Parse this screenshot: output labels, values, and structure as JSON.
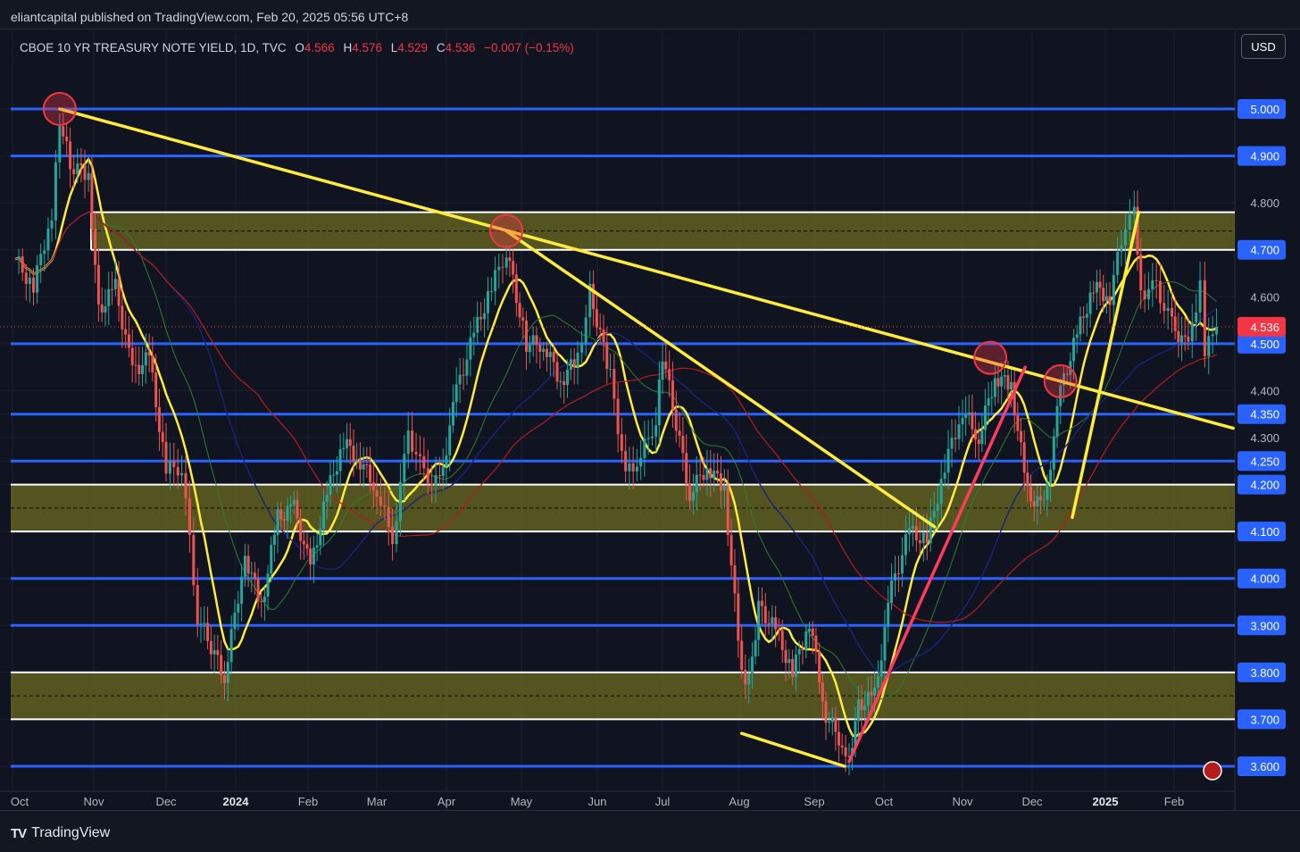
{
  "header": {
    "published_by": "eliantcapital published on TradingView.com, Feb 20, 2025 05:56 UTC+8"
  },
  "legend": {
    "symbol": "CBOE 10 YR TREASURY NOTE YIELD, 1D, TVC",
    "open_label": "O",
    "open": "4.566",
    "high_label": "H",
    "high": "4.576",
    "low_label": "L",
    "low": "4.529",
    "close_label": "C",
    "close": "4.536",
    "change": "−0.007 (−0.15%)"
  },
  "currency_button": "USD",
  "footer": {
    "brand": "TradingView",
    "brand_mark": "TV"
  },
  "colors": {
    "background": "#0f1420",
    "up_candle": "#26a69a",
    "down_candle": "#ef5350",
    "level_line": "#2962ff",
    "trend_line": "#ffeb3b",
    "zone_fill": "#6b6a1f",
    "highlight_circle": "#f23645",
    "last_price": "#f23645"
  },
  "chart_data": {
    "type": "line",
    "title": "CBOE 10 YR TREASURY NOTE YIELD, 1D, TVC",
    "price_axis": {
      "ticks": [
        "5.000",
        "4.900",
        "4.800",
        "4.700",
        "4.600",
        "4.500",
        "4.400",
        "4.350",
        "4.300",
        "4.250",
        "4.200",
        "4.100",
        "4.000",
        "3.900",
        "3.800",
        "3.700",
        "3.600"
      ],
      "highlighted_ticks": [
        "5.000",
        "4.900",
        "4.700",
        "4.500",
        "4.350",
        "4.250",
        "4.200",
        "4.100",
        "4.000",
        "3.900",
        "3.800",
        "3.700",
        "3.600"
      ],
      "ylim": [
        3.6,
        5.1
      ],
      "last_price": "4.536"
    },
    "time_axis": {
      "labels": [
        "Oct",
        "Nov",
        "Dec",
        "2024",
        "Feb",
        "Mar",
        "Apr",
        "May",
        "Jun",
        "Jul",
        "Aug",
        "Sep",
        "Oct",
        "Nov",
        "Dec",
        "2025",
        "Feb"
      ],
      "bold_labels": [
        "2024",
        "2025"
      ]
    },
    "horizontal_levels": [
      {
        "price": 5.0,
        "color": "blue"
      },
      {
        "price": 4.9,
        "color": "blue"
      },
      {
        "price": 4.5,
        "color": "blue"
      },
      {
        "price": 4.35,
        "color": "blue"
      },
      {
        "price": 4.25,
        "color": "blue"
      },
      {
        "price": 4.0,
        "color": "blue"
      },
      {
        "price": 3.9,
        "color": "blue"
      },
      {
        "price": 3.6,
        "color": "blue"
      }
    ],
    "zones": [
      {
        "from": 4.7,
        "to": 4.78
      },
      {
        "from": 4.1,
        "to": 4.2
      },
      {
        "from": 3.7,
        "to": 3.8
      }
    ],
    "series": [
      {
        "kind": "closing_price",
        "points": [
          [
            "2023-10-02",
            4.68
          ],
          [
            "2023-10-09",
            4.62
          ],
          [
            "2023-10-16",
            4.78
          ],
          [
            "2023-10-19",
            4.98
          ],
          [
            "2023-10-23",
            4.88
          ],
          [
            "2023-10-30",
            4.86
          ],
          [
            "2023-11-03",
            4.57
          ],
          [
            "2023-11-10",
            4.62
          ],
          [
            "2023-11-17",
            4.44
          ],
          [
            "2023-11-24",
            4.47
          ],
          [
            "2023-12-01",
            4.23
          ],
          [
            "2023-12-08",
            4.24
          ],
          [
            "2023-12-15",
            3.92
          ],
          [
            "2023-12-27",
            3.79
          ],
          [
            "2024-01-05",
            4.05
          ],
          [
            "2024-01-12",
            3.94
          ],
          [
            "2024-01-19",
            4.13
          ],
          [
            "2024-01-26",
            4.15
          ],
          [
            "2024-02-02",
            4.02
          ],
          [
            "2024-02-09",
            4.18
          ],
          [
            "2024-02-16",
            4.29
          ],
          [
            "2024-02-23",
            4.25
          ],
          [
            "2024-03-01",
            4.19
          ],
          [
            "2024-03-08",
            4.08
          ],
          [
            "2024-03-15",
            4.31
          ],
          [
            "2024-03-22",
            4.22
          ],
          [
            "2024-03-29",
            4.2
          ],
          [
            "2024-04-05",
            4.4
          ],
          [
            "2024-04-12",
            4.52
          ],
          [
            "2024-04-19",
            4.62
          ],
          [
            "2024-04-25",
            4.7
          ],
          [
            "2024-05-03",
            4.5
          ],
          [
            "2024-05-10",
            4.5
          ],
          [
            "2024-05-17",
            4.42
          ],
          [
            "2024-05-24",
            4.47
          ],
          [
            "2024-05-29",
            4.61
          ],
          [
            "2024-06-07",
            4.43
          ],
          [
            "2024-06-14",
            4.22
          ],
          [
            "2024-06-21",
            4.26
          ],
          [
            "2024-06-28",
            4.34
          ],
          [
            "2024-07-01",
            4.48
          ],
          [
            "2024-07-12",
            4.18
          ],
          [
            "2024-07-19",
            4.24
          ],
          [
            "2024-07-26",
            4.19
          ],
          [
            "2024-08-02",
            3.79
          ],
          [
            "2024-08-05",
            3.78
          ],
          [
            "2024-08-09",
            3.94
          ],
          [
            "2024-08-16",
            3.89
          ],
          [
            "2024-08-23",
            3.8
          ],
          [
            "2024-08-30",
            3.91
          ],
          [
            "2024-09-06",
            3.71
          ],
          [
            "2024-09-13",
            3.65
          ],
          [
            "2024-09-16",
            3.62
          ],
          [
            "2024-09-20",
            3.73
          ],
          [
            "2024-09-27",
            3.75
          ],
          [
            "2024-10-04",
            3.98
          ],
          [
            "2024-10-11",
            4.1
          ],
          [
            "2024-10-18",
            4.08
          ],
          [
            "2024-10-25",
            4.24
          ],
          [
            "2024-11-01",
            4.36
          ],
          [
            "2024-11-08",
            4.3
          ],
          [
            "2024-11-15",
            4.43
          ],
          [
            "2024-11-22",
            4.41
          ],
          [
            "2024-11-29",
            4.18
          ],
          [
            "2024-12-06",
            4.15
          ],
          [
            "2024-12-13",
            4.4
          ],
          [
            "2024-12-20",
            4.52
          ],
          [
            "2024-12-27",
            4.62
          ],
          [
            "2025-01-03",
            4.6
          ],
          [
            "2025-01-10",
            4.76
          ],
          [
            "2025-01-14",
            4.8
          ],
          [
            "2025-01-17",
            4.61
          ],
          [
            "2025-01-24",
            4.62
          ],
          [
            "2025-01-31",
            4.54
          ],
          [
            "2025-02-07",
            4.49
          ],
          [
            "2025-02-12",
            4.63
          ],
          [
            "2025-02-14",
            4.48
          ],
          [
            "2025-02-19",
            4.536
          ]
        ]
      }
    ],
    "trend_lines": [
      {
        "color": "yellow",
        "from": [
          "2023-10-19",
          5.0
        ],
        "to": [
          "2025-02-26",
          4.32
        ]
      },
      {
        "color": "yellow",
        "from": [
          "2024-04-25",
          4.74
        ],
        "to": [
          "2024-10-21",
          4.11
        ]
      },
      {
        "color": "red",
        "from": [
          "2024-09-16",
          3.61
        ],
        "to": [
          "2024-11-28",
          4.45
        ]
      },
      {
        "color": "yellow",
        "from": [
          "2024-08-02",
          3.67
        ],
        "to": [
          "2024-09-14",
          3.6
        ]
      },
      {
        "color": "yellow",
        "from": [
          "2024-12-18",
          4.13
        ],
        "to": [
          "2025-01-16",
          4.78
        ]
      }
    ],
    "marked_points": [
      {
        "date": "2023-10-19",
        "price": 5.0
      },
      {
        "date": "2024-04-25",
        "price": 4.74
      },
      {
        "date": "2024-11-13",
        "price": 4.47
      },
      {
        "date": "2024-12-13",
        "price": 4.42
      }
    ]
  }
}
